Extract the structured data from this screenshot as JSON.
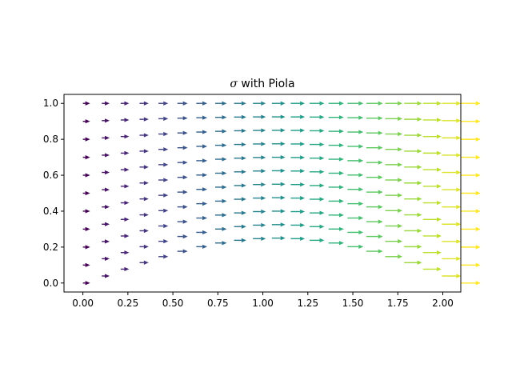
{
  "chart_data": {
    "type": "quiver",
    "title_symbol": "σ",
    "title_text": " with Piola",
    "xlabel": "",
    "ylabel": "",
    "xlim": [
      -0.105,
      2.1
    ],
    "ylim": [
      -0.05,
      1.05
    ],
    "xticks": [
      "0.00",
      "0.25",
      "0.50",
      "0.75",
      "1.00",
      "1.25",
      "1.50",
      "1.75",
      "2.00"
    ],
    "xtick_values": [
      0,
      0.25,
      0.5,
      0.75,
      1.0,
      1.25,
      1.5,
      1.75,
      2.0
    ],
    "yticks": [
      "0.0",
      "0.2",
      "0.4",
      "0.6",
      "0.8",
      "1.0"
    ],
    "ytick_values": [
      0,
      0.2,
      0.4,
      0.6,
      0.8,
      1.0
    ],
    "grid": false,
    "colormap": "viridis",
    "x_grid": {
      "start": 0,
      "stop": 2.1,
      "count": 21
    },
    "y_rows": [
      0,
      0.1,
      0.2,
      0.3,
      0.4,
      0.5,
      0.6,
      0.7,
      0.8,
      0.9,
      1.0
    ],
    "deformation": "y_plot = y + (1 - y) * 0.25 * sin(pi * x / 2.1)",
    "arrow_direction": "positive-x",
    "arrow_length_range": [
      0.04,
      0.11
    ],
    "colors": {
      "axis": "#000000",
      "background": "#ffffff"
    }
  }
}
